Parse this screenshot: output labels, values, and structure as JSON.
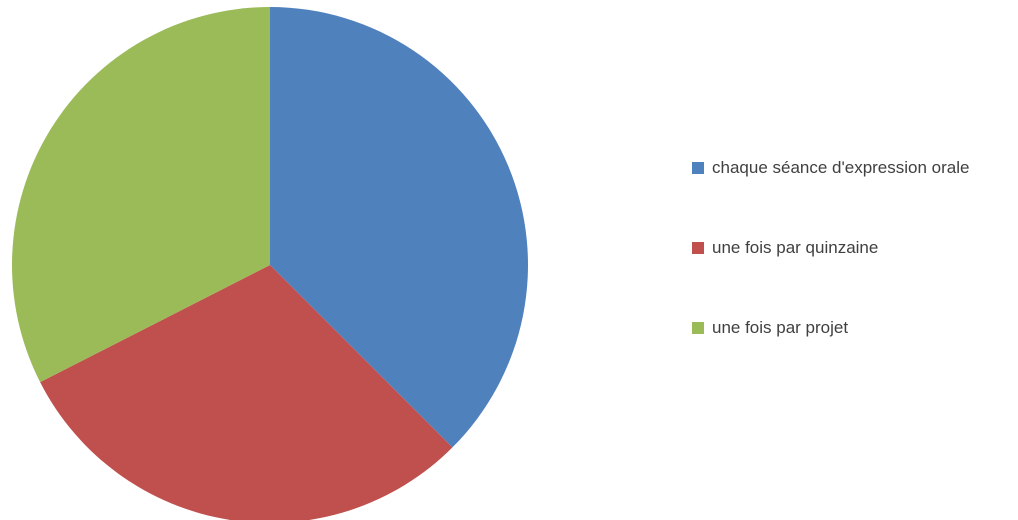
{
  "chart_data": {
    "type": "pie",
    "categories": [
      "chaque séance d'expression orale",
      "une fois par quinzaine",
      "une fois par projet"
    ],
    "values": [
      37.5,
      30,
      32.5
    ],
    "colors": [
      "#4f81bd",
      "#c0504d",
      "#9bbb59"
    ],
    "legend": "right"
  }
}
